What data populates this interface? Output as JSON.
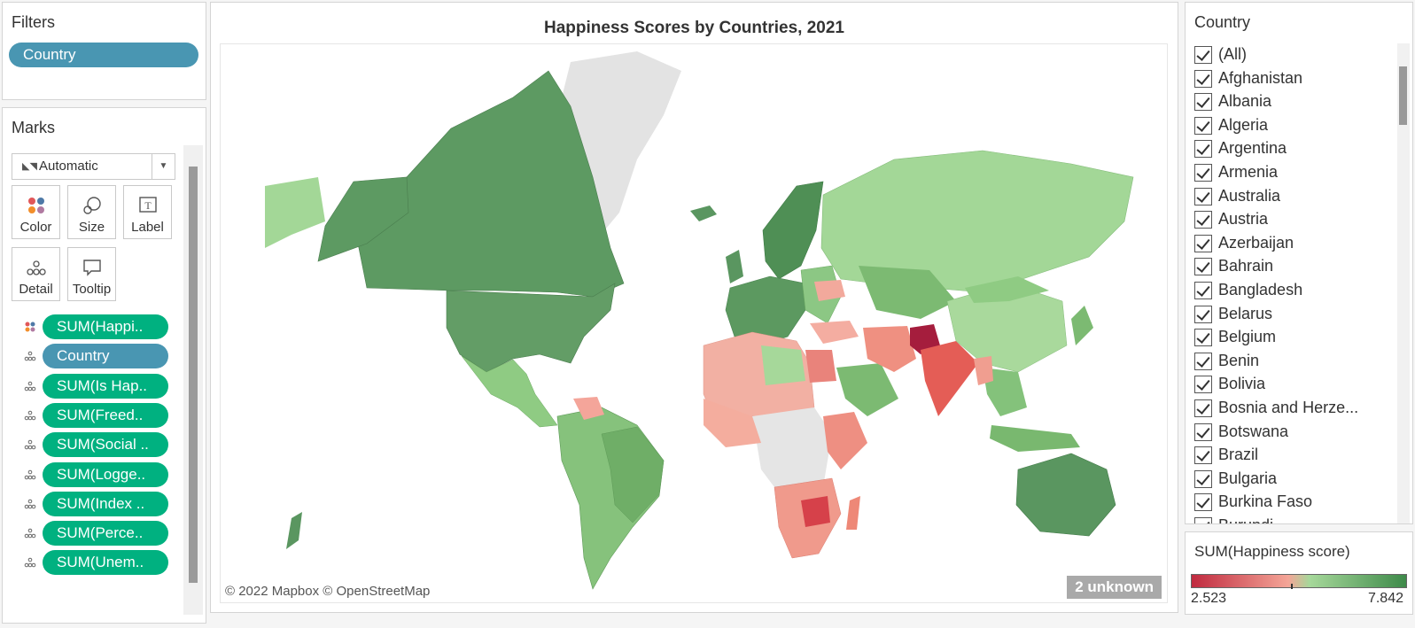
{
  "filters": {
    "title": "Filters",
    "pill": "Country"
  },
  "marks": {
    "title": "Marks",
    "mark_type": "Automatic",
    "buttons": {
      "color": "Color",
      "size": "Size",
      "label": "Label",
      "detail": "Detail",
      "tooltip": "Tooltip"
    },
    "fields": [
      {
        "label": "SUM(Happi..",
        "icon": "color-dots-icon",
        "kind": "measure"
      },
      {
        "label": "Country",
        "icon": "detail-icon",
        "kind": "dimension"
      },
      {
        "label": "SUM(Is Hap..",
        "icon": "detail-icon",
        "kind": "measure"
      },
      {
        "label": "SUM(Freed..",
        "icon": "detail-icon",
        "kind": "measure"
      },
      {
        "label": "SUM(Social ..",
        "icon": "detail-icon",
        "kind": "measure"
      },
      {
        "label": "SUM(Logge..",
        "icon": "detail-icon",
        "kind": "measure"
      },
      {
        "label": "SUM(Index ..",
        "icon": "detail-icon",
        "kind": "measure"
      },
      {
        "label": "SUM(Perce..",
        "icon": "detail-icon",
        "kind": "measure"
      },
      {
        "label": "SUM(Unem..",
        "icon": "detail-icon",
        "kind": "measure"
      }
    ]
  },
  "map": {
    "title": "Happiness Scores by Countries, 2021",
    "copyright": "© 2022 Mapbox © OpenStreetMap",
    "unknown_badge": "2 unknown",
    "colors": {
      "low": "#c02a3f",
      "mid_low": "#f4a597",
      "mid_high": "#a6d89a",
      "high": "#3e8a4a",
      "no_data": "#e5e5e5"
    }
  },
  "country_filter": {
    "title": "Country",
    "items": [
      "(All)",
      "Afghanistan",
      "Albania",
      "Algeria",
      "Argentina",
      "Armenia",
      "Australia",
      "Austria",
      "Azerbaijan",
      "Bahrain",
      "Bangladesh",
      "Belarus",
      "Belgium",
      "Benin",
      "Bolivia",
      "Bosnia and Herze...",
      "Botswana",
      "Brazil",
      "Bulgaria",
      "Burkina Faso",
      "Burundi"
    ]
  },
  "legend": {
    "title": "SUM(Happiness score)",
    "min": "2.523",
    "max": "7.842"
  }
}
